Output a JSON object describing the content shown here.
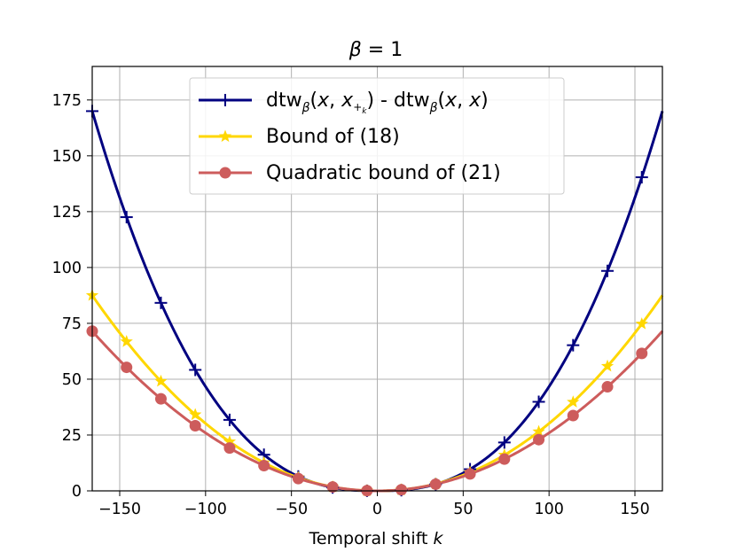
{
  "chart_data": {
    "type": "line",
    "title": "β = 1",
    "xlabel": "Temporal shift k",
    "ylabel": "",
    "xlim": [
      -166,
      166
    ],
    "ylim": [
      0,
      190
    ],
    "xticks": [
      -150,
      -100,
      -50,
      0,
      50,
      100,
      150
    ],
    "yticks": [
      0,
      25,
      50,
      75,
      100,
      125,
      150,
      175
    ],
    "xtick_labels": [
      "−150",
      "−100",
      "−50",
      "0",
      "50",
      "100",
      "150"
    ],
    "ytick_labels": [
      "0",
      "25",
      "50",
      "75",
      "100",
      "125",
      "150",
      "175"
    ],
    "grid": true,
    "legend_position": "top-center",
    "series": [
      {
        "name": "dtw_β(x, x_{+k}) - dtw_β(x, x)",
        "color": "#000080",
        "marker": "plus",
        "marker_x": [
          -166,
          -146,
          -126,
          -106,
          -86,
          -66,
          -46,
          -26,
          -6,
          14,
          34,
          54,
          74,
          94,
          114,
          134,
          154
        ],
        "curve_type": "power",
        "curve_exponent": 2.55,
        "curve_value_at_max": 170
      },
      {
        "name": "Bound of (18)",
        "color": "#FFD700",
        "marker": "star",
        "marker_x": [
          -166,
          -146,
          -126,
          -106,
          -86,
          -66,
          -46,
          -26,
          -6,
          14,
          34,
          54,
          74,
          94,
          114,
          134,
          154
        ],
        "curve_type": "power",
        "curve_exponent": 2.1,
        "curve_value_at_max": 87.5
      },
      {
        "name": "Quadratic bound of (21)",
        "color": "#CD5C5C",
        "marker": "circle",
        "marker_x": [
          -166,
          -146,
          -126,
          -106,
          -86,
          -66,
          -46,
          -26,
          -6,
          14,
          34,
          54,
          74,
          94,
          114,
          134,
          154
        ],
        "curve_type": "power",
        "curve_exponent": 2.0,
        "curve_value_at_max": 71.5
      }
    ]
  },
  "legend": {
    "entries": [
      {
        "prefix": "dtw",
        "sub1": "β",
        "open": "(",
        "v1": "x",
        "sep": ", ",
        "v2": "x",
        "v2sub": "+",
        "v2subsub": "k",
        "close": ") - dtw",
        "sub2": "β",
        "open2": "(",
        "v3": "x",
        "sep2": ", ",
        "v4": "x",
        "close2": ")"
      },
      {
        "label": "Bound of (18)"
      },
      {
        "label": "Quadratic bound of (21)"
      }
    ]
  },
  "title_parts": {
    "beta": "β",
    "rest": " = 1"
  },
  "xlabel_parts": {
    "text": "Temporal shift ",
    "var": "k"
  }
}
